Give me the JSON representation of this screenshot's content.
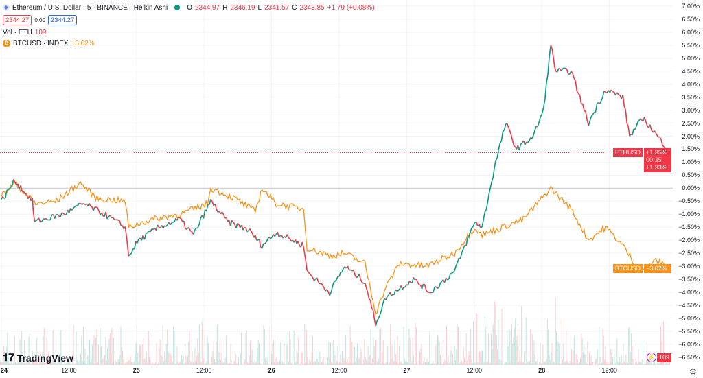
{
  "legend": {
    "title": "Ethereum / U.S. Dollar · 5 · BINANCE · Heikin Ashi",
    "o_label": "O",
    "o": "2344.97",
    "h_label": "H",
    "h": "2346.19",
    "l_label": "L",
    "l": "2341.57",
    "c_label": "C",
    "c": "2343.85",
    "change": "+1.79 (+0.08%)",
    "bid": "2344.27",
    "spread": "0.00",
    "ask": "2344.27",
    "vol_label": "Vol · ETH",
    "vol": "109",
    "compare_label": "BTCUSD · INDEX",
    "compare_change": "−3.02%"
  },
  "price_tags": {
    "eth_symbol": "ETHUSD",
    "eth_pct": "+1.35%",
    "countdown": "00:35",
    "eth_pct2": "+1.33%",
    "btc_symbol": "BTCUSD",
    "btc_pct": "−3.02%",
    "vol": "109"
  },
  "brand": "TradingView",
  "colors": {
    "eth_up": "#089981",
    "eth_down": "#f23645",
    "btc": "#f7931a"
  },
  "chart_data": {
    "type": "line",
    "yunit": "%",
    "ylim": [
      -6.5,
      7.0
    ],
    "y_ticks": [
      "7.00%",
      "6.50%",
      "6.00%",
      "5.50%",
      "5.00%",
      "4.50%",
      "4.00%",
      "3.50%",
      "3.00%",
      "2.50%",
      "2.00%",
      "1.50%",
      "1.00%",
      "0.50%",
      "0.00%",
      "−0.50%",
      "−1.00%",
      "−1.50%",
      "−2.00%",
      "−2.50%",
      "−3.00%",
      "−3.50%",
      "−4.00%",
      "−4.50%",
      "−5.00%",
      "−5.50%",
      "−6.00%",
      "−6.50%"
    ],
    "x_ticks": [
      {
        "h": 0,
        "label": "24"
      },
      {
        "h": 12,
        "label": "12:00"
      },
      {
        "h": 24,
        "label": "25"
      },
      {
        "h": 36,
        "label": "12:00"
      },
      {
        "h": 48,
        "label": "26"
      },
      {
        "h": 60,
        "label": "12:00"
      },
      {
        "h": 72,
        "label": "27"
      },
      {
        "h": 84,
        "label": "12:00"
      },
      {
        "h": 96,
        "label": "28"
      },
      {
        "h": 108,
        "label": "12:00"
      }
    ],
    "series": [
      {
        "name": "ETHUSD",
        "x_hours": [
          0,
          2.4,
          5.5,
          5.9,
          11,
          14.6,
          18.3,
          22,
          22.6,
          24.4,
          28,
          31.7,
          34.1,
          37.2,
          40.2,
          43.9,
          46.3,
          48.8,
          53.7,
          54.3,
          58.3,
          61,
          64.6,
          66.5,
          68.3,
          73.2,
          76.2,
          80.5,
          84.1,
          85.4,
          87.8,
          89.6,
          91.5,
          94.5,
          96.3,
          97.6,
          98.5,
          101.2,
          104.3,
          107.3,
          110.4,
          111.6,
          114,
          118.9
        ],
        "values": [
          -0.5,
          0.3,
          -0.5,
          -1.3,
          -1.0,
          -0.6,
          -1.0,
          -1.5,
          -2.6,
          -2.0,
          -1.5,
          -1.2,
          -1.8,
          -0.5,
          -1.3,
          -1.6,
          -2.2,
          -1.7,
          -2.2,
          -3.2,
          -4.0,
          -3.0,
          -3.6,
          -5.2,
          -4.2,
          -3.5,
          -4.0,
          -3.2,
          -1.3,
          -1.5,
          1.0,
          2.5,
          1.5,
          2.0,
          3.0,
          5.5,
          4.5,
          4.5,
          2.5,
          3.8,
          3.5,
          2.0,
          2.7,
          1.35
        ]
      },
      {
        "name": "BTCUSD",
        "x_hours": [
          0,
          2.4,
          6.1,
          9.8,
          14,
          17,
          22,
          22.6,
          26.8,
          31.7,
          36.6,
          37.2,
          41.5,
          45.1,
          46.3,
          48.8,
          53.7,
          54.3,
          58.5,
          61,
          64.6,
          66.5,
          68.3,
          70.7,
          75.6,
          80.5,
          84.1,
          85.4,
          92.7,
          97.6,
          101.2,
          104.3,
          107.3,
          110.4,
          113.4,
          115.9,
          118.9
        ],
        "values": [
          -0.3,
          0.2,
          -0.6,
          -0.5,
          0.2,
          -0.4,
          -0.5,
          -1.5,
          -1.2,
          -1.0,
          -0.6,
          0,
          -0.4,
          -0.9,
          0,
          -0.6,
          -0.8,
          -2.3,
          -2.6,
          -2.5,
          -2.9,
          -4.8,
          -3.8,
          -2.9,
          -3.0,
          -2.5,
          -1.5,
          -1.8,
          -1.2,
          0,
          -0.8,
          -2.0,
          -1.5,
          -2.2,
          -3.2,
          -2.8,
          -3.02
        ]
      }
    ]
  }
}
